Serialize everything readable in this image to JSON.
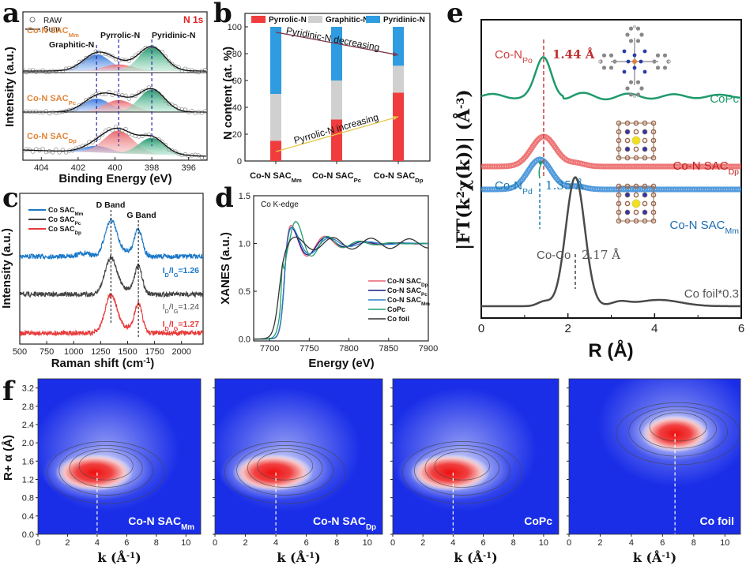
{
  "figure": {
    "panel_labels": [
      "a",
      "b",
      "c",
      "d",
      "e",
      "f"
    ]
  },
  "chart_data": [
    {
      "id": "a",
      "type": "line",
      "title": "N 1s",
      "xlabel": "Binding Energy (eV)",
      "ylabel": "Intensity (a.u.)",
      "xlim": [
        405,
        395
      ],
      "xticks": [
        404,
        402,
        400,
        398,
        396
      ],
      "legend": [
        {
          "name": "RAW",
          "marker": "open-circle"
        },
        {
          "name": "Sum",
          "marker": "line"
        }
      ],
      "legend_position": "top-left",
      "peak_labels": [
        {
          "name": "Graphitic-N",
          "position_eV": 401.0,
          "color": "#2a6fd6"
        },
        {
          "name": "Pyrrolic-N",
          "position_eV": 399.8,
          "color": "#e8767a"
        },
        {
          "name": "Pyridinic-N",
          "position_eV": 398.0,
          "color": "#1f9a6b"
        }
      ],
      "series": [
        {
          "name": "Co-N SACMm",
          "label_main": "Co-N SAC",
          "label_sub": "Mm",
          "components": {
            "graphitic": 0.55,
            "pyrrolic": 0.22,
            "pyridinic": 0.8
          }
        },
        {
          "name": "Co-N SACPc",
          "label_main": "Co-N SAC",
          "label_sub": "Pc",
          "components": {
            "graphitic": 0.45,
            "pyrrolic": 0.4,
            "pyridinic": 0.75
          }
        },
        {
          "name": "Co-N SACDp",
          "label_main": "Co-N SAC",
          "label_sub": "Dp",
          "components": {
            "graphitic": 0.22,
            "pyrrolic": 0.75,
            "pyridinic": 0.55
          }
        }
      ],
      "sample_label_color": "#e0853a",
      "title_color": "#e02020"
    },
    {
      "id": "b",
      "type": "bar",
      "stacked": true,
      "categories": [
        {
          "main": "Co-N SAC",
          "sub": "Mm"
        },
        {
          "main": "Co-N SAC",
          "sub": "Pc"
        },
        {
          "main": "Co-N SAC",
          "sub": "Dp"
        }
      ],
      "series": [
        {
          "name": "Pyrrolic-N",
          "color": "#f03c3c",
          "values": [
            15,
            31,
            51
          ]
        },
        {
          "name": "Graphitic-N",
          "color": "#d0d0d0",
          "values": [
            35,
            29,
            20
          ]
        },
        {
          "name": "Pyridinic-N",
          "color": "#2f9be0",
          "values": [
            50,
            40,
            29
          ]
        }
      ],
      "xlabel": "",
      "ylabel": "N content (at. %)",
      "ylim": [
        0,
        110
      ],
      "yticks": [
        0,
        20,
        40,
        60,
        80,
        100
      ],
      "legend_position": "top",
      "annotations": [
        {
          "text": "Pyridinic-N decreasing",
          "arrow_color": "#7a3a4a",
          "from": [
            0,
            96
          ],
          "to": [
            2,
            79
          ]
        },
        {
          "text": "Pyrrolic-N increasing",
          "arrow_color": "#e6c84a",
          "from": [
            0,
            7
          ],
          "to": [
            2,
            33
          ]
        }
      ]
    },
    {
      "id": "c",
      "type": "line",
      "xlabel": "Raman shift (cm-1)",
      "xlabel_main": "Raman shift (cm",
      "xlabel_sup": "-1",
      "xlabel_tail": ")",
      "ylabel": "Intensity (a.u.)",
      "xlim": [
        500,
        2200
      ],
      "xticks": [
        500,
        750,
        1000,
        1250,
        1500,
        1750,
        2000
      ],
      "band_labels": [
        {
          "name": "D Band",
          "x": 1345
        },
        {
          "name": "G Band",
          "x": 1595
        }
      ],
      "legend_position": "top-left",
      "series": [
        {
          "name": "Co SACMm",
          "label_main": "Co SAC",
          "label_sub": "Mm",
          "color": "#1a78c8",
          "ratio_text": "=1.26",
          "ratio": 1.26
        },
        {
          "name": "Co SACPc",
          "label_main": "Co SAC",
          "label_sub": "Pc",
          "color": "#444444",
          "ratio_text": "=1.24",
          "ratio": 1.24
        },
        {
          "name": "Co SACDp",
          "label_main": "Co SAC",
          "label_sub": "Dp",
          "color": "#e83a3a",
          "ratio_text": "=1.27",
          "ratio": 1.27
        }
      ]
    },
    {
      "id": "d",
      "type": "line",
      "annotation": "Co K-edge",
      "xlabel": "Energy (eV)",
      "ylabel": "XANES (a.u.)",
      "xlim": [
        7680,
        7900
      ],
      "ylim": [
        -0.02,
        1.5
      ],
      "xticks": [
        7700,
        7750,
        7800,
        7850,
        7900
      ],
      "yticks": [
        "0.0",
        "0.5",
        "1.0",
        "1.5"
      ],
      "legend_position": "bottom-right",
      "series": [
        {
          "name": "Co-N SACDp",
          "label_main": "Co-N SAC",
          "label_sub": "Dp",
          "color": "#e86070"
        },
        {
          "name": "Co-N SACPc",
          "label_main": "Co-N SAC",
          "label_sub": "Pc",
          "color": "#1a1a8a"
        },
        {
          "name": "Co-N SACMm",
          "label_main": "Co-N SAC",
          "label_sub": "Mm",
          "color": "#2a80c8"
        },
        {
          "name": "CoPc",
          "label_main": "CoPc",
          "label_sub": "",
          "color": "#20a070"
        },
        {
          "name": "Co foil",
          "label_main": "Co foil",
          "label_sub": "",
          "color": "#333333"
        }
      ]
    },
    {
      "id": "e",
      "type": "line",
      "xlabel": "R (Å)",
      "ylabel": "|FT(k2χ(k))| (Å-3)",
      "xlim": [
        0,
        6
      ],
      "xticks": [
        0,
        2,
        4,
        6
      ],
      "series": [
        {
          "name": "CoPc",
          "color": "#1f9a6b",
          "peak_R": 1.44
        },
        {
          "name": "Co-N SACDp",
          "label_main": "Co-N SAC",
          "label_sub": "Dp",
          "color": "#e84848",
          "peak_R": 1.44
        },
        {
          "name": "Co-N SACMm",
          "label_main": "Co-N SAC",
          "label_sub": "Mm",
          "color": "#1a7ad0",
          "peak_R": 1.35
        },
        {
          "name": "Co foil*0.3",
          "color": "#4a4a4a",
          "peak_R": 2.17
        }
      ],
      "annotations": [
        {
          "label_main": "Co-N",
          "label_sub": "Po",
          "value": "1.44 Å",
          "color": "#d04040"
        },
        {
          "label_main": "Co-N",
          "label_sub": "Pd",
          "value": "1.35 Å",
          "color": "#1a7ab0"
        },
        {
          "label_main": "Co-Co",
          "label_sub": "",
          "value": "2.17 Å",
          "color": "#555555"
        }
      ]
    },
    {
      "id": "f",
      "type": "heatmap",
      "xlabel": "k (Å-1)",
      "ylabel": "R+ α (Å)",
      "xlim": [
        0,
        11
      ],
      "ylim": [
        0,
        3.4
      ],
      "xticks": [
        0,
        2,
        4,
        6,
        8,
        10
      ],
      "yticks": [
        "0.0",
        "0.4",
        "0.8",
        "1.2",
        "1.6",
        "2.0",
        "2.4",
        "2.8",
        "3.2"
      ],
      "colormap": [
        "#1a2ee8",
        "#ffffff",
        "#ee1010"
      ],
      "maps": [
        {
          "label_main": "Co-N SAC",
          "label_sub": "Mm",
          "max_k": 4.0,
          "max_R": 1.35
        },
        {
          "label_main": "Co-N SAC",
          "label_sub": "Dp",
          "max_k": 4.0,
          "max_R": 1.35
        },
        {
          "label_main": "CoPc",
          "label_sub": "",
          "max_k": 4.0,
          "max_R": 1.35
        },
        {
          "label_main": "Co foil",
          "label_sub": "",
          "max_k": 6.8,
          "max_R": 2.2
        }
      ]
    }
  ]
}
